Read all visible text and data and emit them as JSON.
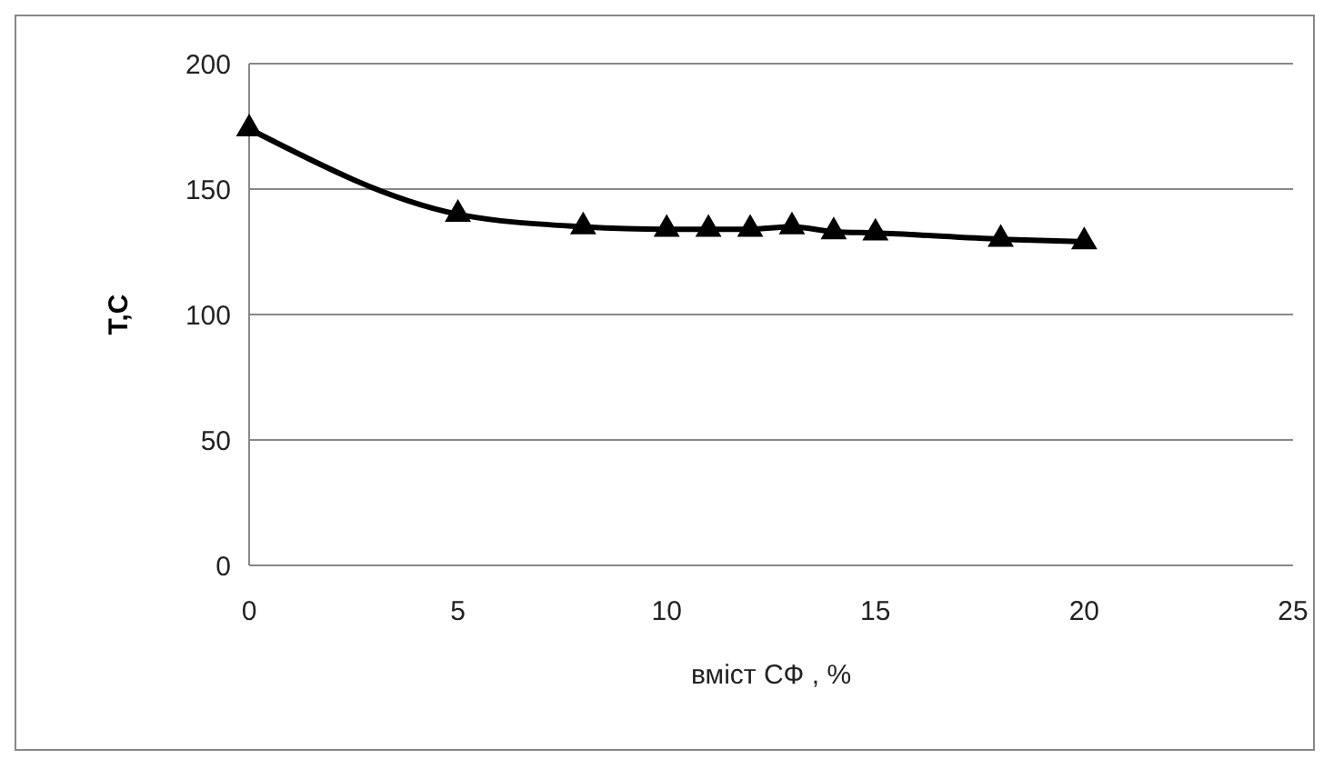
{
  "chart_data": {
    "type": "line",
    "xlabel": "вміст СФ , %",
    "ylabel": "T,C",
    "x": [
      0,
      5,
      8,
      10,
      11,
      12,
      13,
      14,
      15,
      18,
      20
    ],
    "series": [
      {
        "color": "#000000",
        "values": [
          174,
          140,
          135,
          134,
          134,
          134,
          135,
          133,
          132.5,
          130,
          129
        ]
      }
    ],
    "xlim": [
      0,
      25
    ],
    "xticks": [
      0,
      5,
      10,
      15,
      20,
      25
    ],
    "ylim": [
      0,
      200
    ],
    "yticks": [
      0,
      50,
      100,
      150,
      200
    ],
    "grid": "y",
    "marker": "triangle",
    "line_style": "solid"
  }
}
